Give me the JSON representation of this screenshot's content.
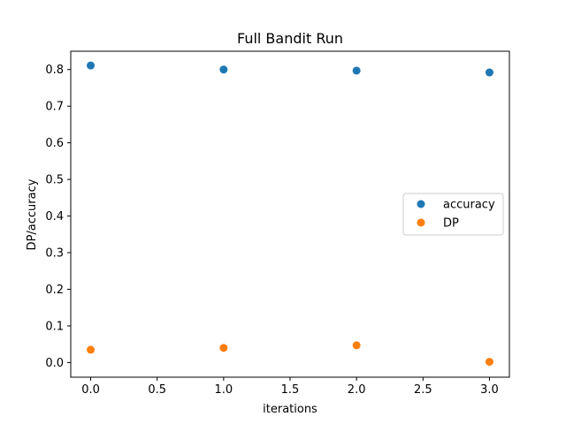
{
  "chart_data": {
    "type": "scatter",
    "title": "Full Bandit Run",
    "xlabel": "iterations",
    "ylabel": "DP/accuracy",
    "xlim": [
      -0.15,
      3.15
    ],
    "ylim": [
      -0.04,
      0.85
    ],
    "xticks": [
      0.0,
      0.5,
      1.0,
      1.5,
      2.0,
      2.5,
      3.0
    ],
    "xtick_labels": [
      "0.0",
      "0.5",
      "1.0",
      "1.5",
      "2.0",
      "2.5",
      "3.0"
    ],
    "yticks": [
      0.0,
      0.1,
      0.2,
      0.3,
      0.4,
      0.5,
      0.6,
      0.7,
      0.8
    ],
    "ytick_labels": [
      "0.0",
      "0.1",
      "0.2",
      "0.3",
      "0.4",
      "0.5",
      "0.6",
      "0.7",
      "0.8"
    ],
    "grid": false,
    "legend_position": "center-right",
    "series": [
      {
        "name": "accuracy",
        "color": "#1f77b4",
        "x": [
          0,
          1,
          2,
          3
        ],
        "y": [
          0.811,
          0.8,
          0.797,
          0.792
        ]
      },
      {
        "name": "DP",
        "color": "#ff7f0e",
        "x": [
          0,
          1,
          2,
          3
        ],
        "y": [
          0.035,
          0.04,
          0.047,
          0.002
        ]
      }
    ]
  }
}
